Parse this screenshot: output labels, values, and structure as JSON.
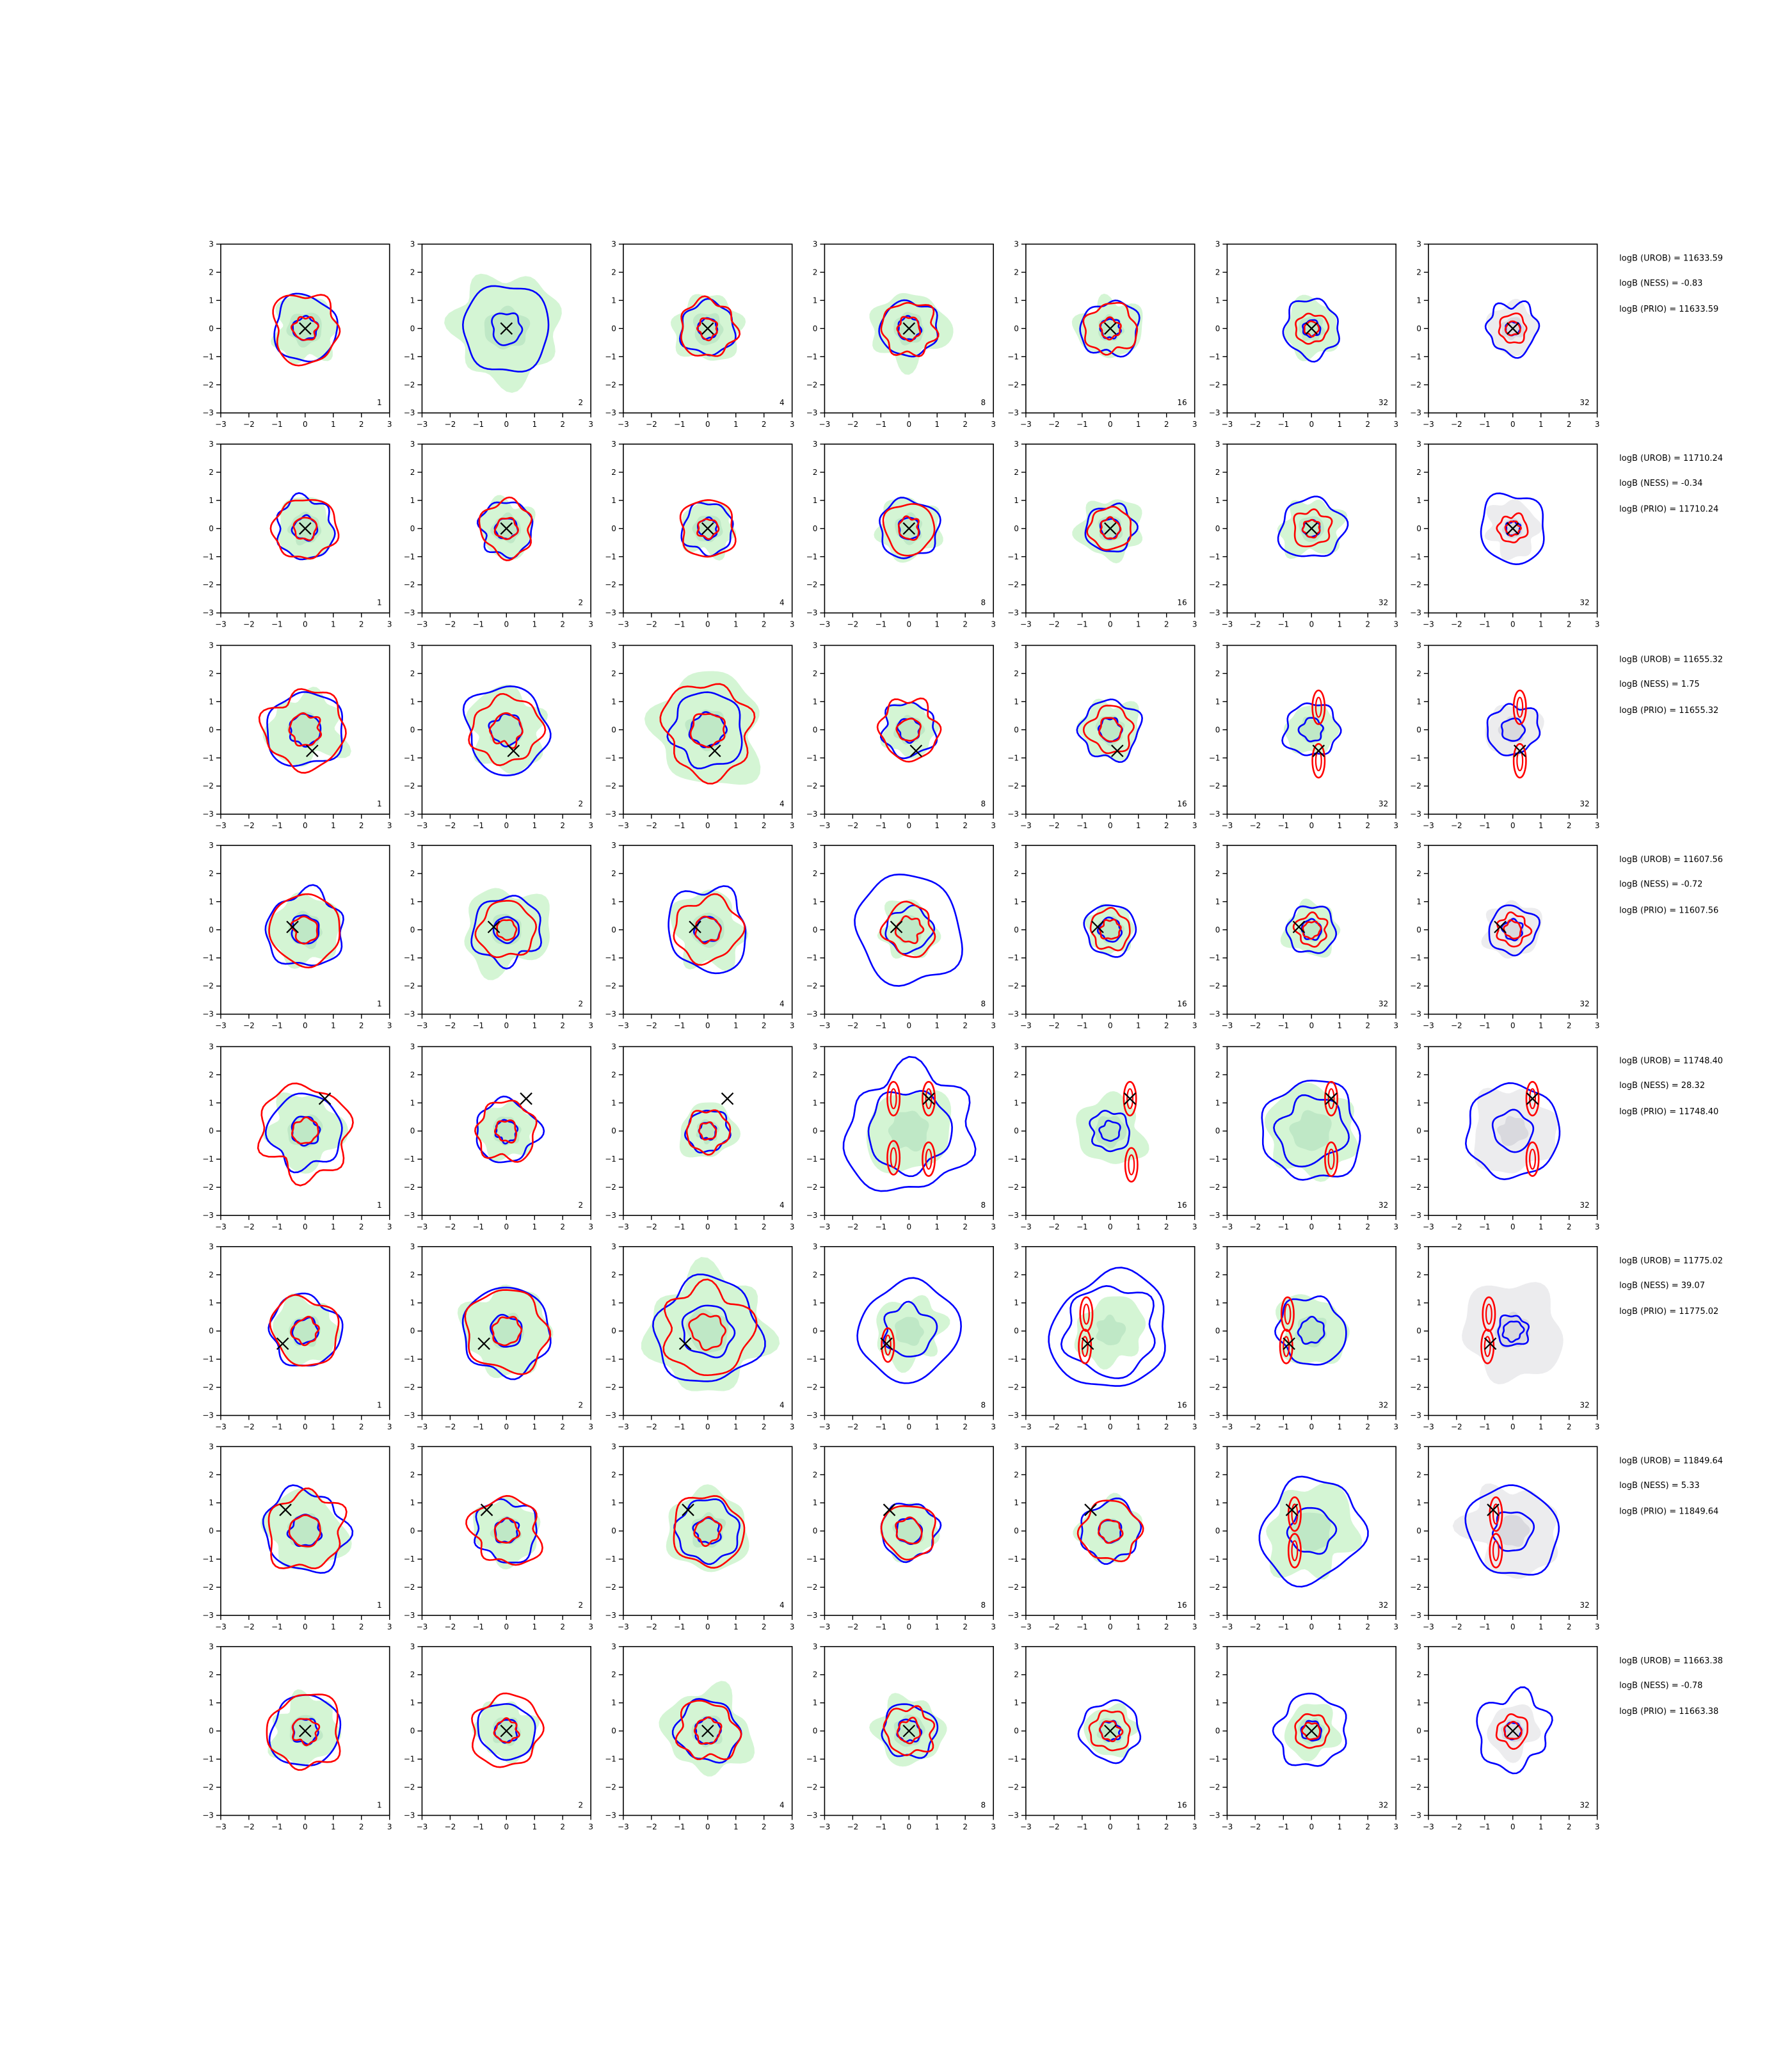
{
  "chart_data": {
    "type": "contour-grid",
    "xlim": [
      -3,
      3
    ],
    "ylim": [
      -3,
      3
    ],
    "ticks": [
      "−3",
      "−2",
      "−1",
      "0",
      "1",
      "2",
      "3"
    ],
    "grid": false,
    "columns": [
      "1",
      "2",
      "4",
      "8",
      "16",
      "32",
      "32"
    ],
    "colors": {
      "blue_contour": "#0000ff",
      "red_contour": "#ff0000",
      "green_fill_outer": "#d4f5d4",
      "green_fill_inner": "#bfe8c6",
      "gray_fill_outer": "#ececee",
      "gray_fill_inner": "#d9d9de",
      "marker": "#000000"
    },
    "rows": [
      {
        "marker": [
          0.0,
          0.0
        ],
        "annotations": [
          "logB (UROB) = 11633.59",
          "logB (NESS) = -0.83",
          "logB (PRIO) = 11633.59"
        ],
        "panels": [
          {
            "fill": [
              1.15,
              0.6
            ],
            "blue": [
              1.15,
              0.42
            ],
            "red": [
              1.2,
              0.42
            ]
          },
          {
            "fill": [
              1.9,
              0.75
            ],
            "blue": [
              1.55,
              0.55
            ],
            "red": []
          },
          {
            "fill": [
              1.2,
              0.55
            ],
            "blue": [
              0.95,
              0.35
            ],
            "red": [
              1.0,
              0.35
            ]
          },
          {
            "fill": [
              1.3,
              0.55
            ],
            "blue": [
              1.0,
              0.4
            ],
            "red": [
              0.95,
              0.4
            ]
          },
          {
            "fill": [
              1.1,
              0.45
            ],
            "blue": [
              1.0,
              0.35
            ],
            "red": [
              0.9,
              0.35
            ]
          },
          {
            "fill": [
              1.0,
              0.45
            ],
            "blue": [
              1.0,
              0.3
            ],
            "red": [
              0.55,
              0.25
            ]
          },
          {
            "fill": [
              0.9,
              0.4
            ],
            "gray": true,
            "blue": [
              0.9,
              0.25
            ],
            "red": [
              0.5,
              0.25
            ]
          }
        ]
      },
      {
        "marker": [
          0.0,
          0.0
        ],
        "annotations": [
          "logB (UROB) = 11710.24",
          "logB (NESS) = -0.34",
          "logB (PRIO) = 11710.24"
        ],
        "panels": [
          {
            "fill": [
              1.05,
              0.55
            ],
            "blue": [
              1.05,
              0.42
            ],
            "red": [
              1.1,
              0.4
            ]
          },
          {
            "fill": [
              1.0,
              0.5
            ],
            "blue": [
              0.95,
              0.38
            ],
            "red": [
              0.95,
              0.38
            ]
          },
          {
            "fill": [
              0.95,
              0.5
            ],
            "blue": [
              0.9,
              0.35
            ],
            "red": [
              1.0,
              0.35
            ]
          },
          {
            "fill": [
              1.1,
              0.5
            ],
            "blue": [
              1.05,
              0.38
            ],
            "red": [
              0.9,
              0.38
            ]
          },
          {
            "fill": [
              1.1,
              0.45
            ],
            "blue": [
              0.85,
              0.35
            ],
            "red": [
              0.75,
              0.35
            ]
          },
          {
            "fill": [
              1.05,
              0.45
            ],
            "blue": [
              1.1,
              0.3
            ],
            "red": [
              0.65,
              0.3
            ]
          },
          {
            "fill": [
              0.95,
              0.35
            ],
            "gray": true,
            "blue": [
              1.2,
              0.25
            ],
            "red": [
              0.5,
              0.25
            ]
          }
        ]
      },
      {
        "marker": [
          0.25,
          -0.75
        ],
        "annotations": [
          "logB (UROB) = 11655.32",
          "logB (NESS) = 1.75",
          "logB (PRIO) = 11655.32"
        ],
        "panels": [
          {
            "fill": [
              1.3,
              0.6
            ],
            "blue": [
              1.35,
              0.55
            ],
            "red": [
              1.4,
              0.55
            ]
          },
          {
            "fill": [
              1.4,
              0.6
            ],
            "blue": [
              1.5,
              0.55
            ],
            "red": [
              1.2,
              0.55
            ]
          },
          {
            "fill": [
              1.95,
              0.7
            ],
            "blue": [
              1.3,
              0.6
            ],
            "red": [
              1.6,
              0.6
            ]
          },
          {
            "fill": [
              0.95,
              0.5
            ],
            "blue": [
              0.95,
              0.4
            ],
            "red": [
              1.05,
              0.4
            ]
          },
          {
            "fill": [
              1.05,
              0.5
            ],
            "blue": [
              1.05,
              0.4
            ],
            "red": [
              0.8,
              0.4
            ]
          },
          {
            "fill": [
              0.9,
              0.45
            ],
            "blue": [
              0.95,
              0.4
            ],
            "red": [],
            "redBlob": [
              [
                0.25,
                0.8
              ],
              [
                0.25,
                -1.1
              ]
            ]
          },
          {
            "fill": [
              0.95,
              0.45
            ],
            "gray": true,
            "blue": [
              0.9,
              0.4
            ],
            "red": [],
            "redBlob": [
              [
                0.25,
                0.8
              ],
              [
                0.25,
                -1.1
              ]
            ]
          }
        ]
      },
      {
        "marker": [
          -0.45,
          0.1
        ],
        "annotations": [
          "logB (UROB) = 11607.56",
          "logB (NESS) = -0.72",
          "logB (PRIO) = 11607.56"
        ],
        "panels": [
          {
            "fill": [
              1.25,
              0.6
            ],
            "blue": [
              1.35,
              0.5
            ],
            "red": [
              1.25,
              0.45
            ]
          },
          {
            "fill": [
              1.5,
              0.55
            ],
            "blue": [
              1.2,
              0.45
            ],
            "red": [
              1.0,
              0.35
            ]
          },
          {
            "fill": [
              1.3,
              0.6
            ],
            "blue": [
              1.45,
              0.45
            ],
            "red": [
              1.15,
              0.45
            ]
          },
          {
            "fill": [
              1.0,
              0.5
            ],
            "blue": [
              1.9,
              0.8
            ],
            "red": [
              0.9,
              0.45
            ]
          },
          {
            "fill": [
              0.85,
              0.45
            ],
            "blue": [
              0.9,
              0.4
            ],
            "red": [
              0.7,
              0.35
            ]
          },
          {
            "fill": [
              0.95,
              0.4
            ],
            "blue": [
              0.85,
              0.35
            ],
            "red": [
              0.55,
              0.3
            ]
          },
          {
            "fill": [
              1.0,
              0.4
            ],
            "gray": true,
            "blue": [
              0.85,
              0.35
            ],
            "red": [
              0.55,
              0.3
            ]
          }
        ]
      },
      {
        "marker": [
          0.7,
          1.15
        ],
        "annotations": [
          "logB (UROB) = 11748.40",
          "logB (NESS) = 28.32",
          "logB (PRIO) = 11748.40"
        ],
        "panels": [
          {
            "fill": [
              1.3,
              0.6
            ],
            "blue": [
              1.3,
              0.5
            ],
            "red": [
              1.6,
              0.45
            ]
          },
          {
            "fill": [
              1.0,
              0.5
            ],
            "blue": [
              1.1,
              0.38
            ],
            "red": [
              1.05,
              0.38
            ]
          },
          {
            "fill": [
              1.0,
              0.4
            ],
            "blue": [
              0.75,
              0.3
            ],
            "red": [
              0.75,
              0.3
            ]
          },
          {
            "fill": [
              1.5,
              0.7
            ],
            "blue": [
              2.2,
              1.45
            ],
            "red": [],
            "redBlob": [
              [
                0.7,
                1.15
              ],
              [
                0.7,
                -1.0
              ],
              [
                -0.55,
                1.15
              ],
              [
                -0.55,
                -0.95
              ]
            ]
          },
          {
            "fill": [
              1.2,
              0.55
            ],
            "blue": [
              0.7,
              0.35
            ],
            "red": [],
            "redBlob": [
              [
                0.7,
                1.15
              ],
              [
                0.75,
                -1.2
              ]
            ]
          },
          {
            "fill": [
              1.6,
              0.7
            ],
            "blue": [
              1.75,
              1.2
            ],
            "red": [],
            "redBlob": [
              [
                0.7,
                1.15
              ],
              [
                0.7,
                -1.0
              ]
            ]
          },
          {
            "fill": [
              1.5,
              0.5
            ],
            "gray": true,
            "blue": [
              1.65,
              0.7
            ],
            "red": [],
            "redBlob": [
              [
                0.7,
                1.15
              ],
              [
                0.7,
                -1.0
              ]
            ]
          }
        ]
      },
      {
        "marker": [
          -0.8,
          -0.45
        ],
        "annotations": [
          "logB (UROB) = 11775.02",
          "logB (NESS) = 39.07",
          "logB (PRIO) = 11775.02"
        ],
        "panels": [
          {
            "fill": [
              1.15,
              0.55
            ],
            "blue": [
              1.25,
              0.45
            ],
            "red": [
              1.2,
              0.45
            ]
          },
          {
            "fill": [
              1.55,
              0.6
            ],
            "blue": [
              1.55,
              0.55
            ],
            "red": [
              1.45,
              0.5
            ]
          },
          {
            "fill": [
              2.1,
              0.75
            ],
            "blue": [
              1.85,
              0.9
            ],
            "red": [
              1.55,
              0.6
            ]
          },
          {
            "fill": [
              1.2,
              0.5
            ],
            "blue": [
              1.75,
              0.9
            ],
            "red": [],
            "redBlob": [
              [
                -0.75,
                -0.5
              ]
            ]
          },
          {
            "fill": [
              1.2,
              0.5
            ],
            "blue": [
              2.05,
              1.6
            ],
            "red": [],
            "redBlob": [
              [
                -0.85,
                0.6
              ],
              [
                -0.9,
                -0.55
              ]
            ]
          },
          {
            "fill": [
              1.25,
              0.55
            ],
            "blue": [
              1.2,
              0.45
            ],
            "red": [],
            "redBlob": [
              [
                -0.85,
                0.6
              ],
              [
                -0.9,
                -0.55
              ]
            ]
          },
          {
            "fill": [
              1.75,
              0.6
            ],
            "gray": true,
            "blue": [
              0.55,
              0.35
            ],
            "red": [],
            "redBlob": [
              [
                -0.85,
                0.6
              ],
              [
                -0.9,
                -0.55
              ]
            ]
          }
        ]
      },
      {
        "marker": [
          -0.7,
          0.75
        ],
        "annotations": [
          "logB (UROB) = 11849.64",
          "logB (NESS) = 5.33",
          "logB (PRIO) = 11849.64"
        ],
        "panels": [
          {
            "fill": [
              1.4,
              0.6
            ],
            "blue": [
              1.45,
              0.55
            ],
            "red": [
              1.35,
              0.55
            ]
          },
          {
            "fill": [
              1.15,
              0.5
            ],
            "blue": [
              1.1,
              0.42
            ],
            "red": [
              1.2,
              0.42
            ]
          },
          {
            "fill": [
              1.45,
              0.6
            ],
            "blue": [
              1.1,
              0.45
            ],
            "red": [
              1.25,
              0.45
            ]
          },
          {
            "fill": [
              1.0,
              0.5
            ],
            "blue": [
              1.0,
              0.45
            ],
            "red": [
              0.95,
              0.45
            ]
          },
          {
            "fill": [
              1.1,
              0.45
            ],
            "blue": [
              1.05,
              0.4
            ],
            "red": [
              1.05,
              0.4
            ]
          },
          {
            "fill": [
              1.6,
              0.7
            ],
            "blue": [
              1.8,
              0.8
            ],
            "red": [],
            "redBlob": [
              [
                -0.6,
                0.6
              ],
              [
                -0.6,
                -0.7
              ]
            ]
          },
          {
            "fill": [
              1.6,
              0.55
            ],
            "gray": true,
            "blue": [
              1.6,
              0.7
            ],
            "red": [],
            "redBlob": [
              [
                -0.6,
                0.6
              ],
              [
                -0.6,
                -0.7
              ]
            ]
          }
        ]
      },
      {
        "marker": [
          0.0,
          0.0
        ],
        "annotations": [
          "logB (UROB) = 11663.38",
          "logB (NESS) = -0.78",
          "logB (PRIO) = 11663.38"
        ],
        "panels": [
          {
            "fill": [
              1.2,
              0.55
            ],
            "blue": [
              1.25,
              0.45
            ],
            "red": [
              1.3,
              0.45
            ]
          },
          {
            "fill": [
              1.05,
              0.5
            ],
            "blue": [
              1.0,
              0.4
            ],
            "red": [
              1.25,
              0.4
            ]
          },
          {
            "fill": [
              1.5,
              0.55
            ],
            "blue": [
              1.1,
              0.45
            ],
            "red": [
              1.05,
              0.45
            ]
          },
          {
            "fill": [
              1.2,
              0.55
            ],
            "blue": [
              0.95,
              0.4
            ],
            "red": [
              0.85,
              0.4
            ]
          },
          {
            "fill": [
              0.9,
              0.45
            ],
            "blue": [
              1.05,
              0.35
            ],
            "red": [
              0.7,
              0.35
            ]
          },
          {
            "fill": [
              0.95,
              0.45
            ],
            "blue": [
              1.25,
              0.35
            ],
            "red": [
              0.6,
              0.3
            ]
          },
          {
            "fill": [
              0.9,
              0.4
            ],
            "gray": true,
            "blue": [
              1.3,
              0.3
            ],
            "red": [
              0.55,
              0.3
            ]
          }
        ]
      }
    ]
  }
}
